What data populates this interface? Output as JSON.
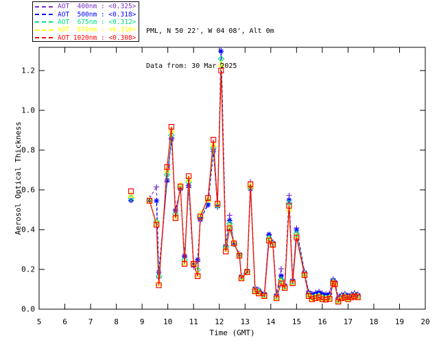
{
  "header": {
    "location": "PML, N 50 22', W 04 08', Alt 0m",
    "data_from": "Data from: 30 Mar 2025"
  },
  "legend": {
    "items": [
      {
        "id": "aot-400nm",
        "label": "AOT  400nm : <0.325>",
        "color": "#7A2FC5"
      },
      {
        "id": "aot-500nm",
        "label": "AOT  500nm : <0.318>",
        "color": "#0000FF"
      },
      {
        "id": "aot-675nm",
        "label": "AOT  675nm : <0.312>",
        "color": "#00E07D"
      },
      {
        "id": "aot-870nm",
        "label": "AOT  870nm : <0.310>",
        "color": "#FFFF00"
      },
      {
        "id": "aot-1020nm",
        "label": "AOT 1020nm : <0.308>",
        "color": "#FF0000"
      }
    ]
  },
  "chart_data": {
    "type": "line",
    "title": "",
    "xlabel": "Time (GMT)",
    "ylabel": "Aerosol Optical Thickness",
    "xlim": [
      5,
      20
    ],
    "ylim": [
      0,
      1.317
    ],
    "grid": false,
    "legend_position": "top-left",
    "x_ticks": [
      "5",
      "6",
      "7",
      "8",
      "9",
      "10",
      "11",
      "12",
      "13",
      "14",
      "15",
      "16",
      "17",
      "18",
      "19",
      "20"
    ],
    "y_ticks": [
      "0.0",
      "0.2",
      "0.4",
      "0.6",
      "0.8",
      "1.0",
      "1.2"
    ],
    "x": [
      8.57,
      9.29,
      9.56,
      9.65,
      9.97,
      10.14,
      10.3,
      10.49,
      10.65,
      10.81,
      11.0,
      11.16,
      11.26,
      11.56,
      11.77,
      11.93,
      12.07,
      12.25,
      12.4,
      12.57,
      12.78,
      12.86,
      13.08,
      13.21,
      13.39,
      13.53,
      13.75,
      13.93,
      14.08,
      14.22,
      14.4,
      14.54,
      14.71,
      14.85,
      15.0,
      15.31,
      15.47,
      15.6,
      15.74,
      15.87,
      16.0,
      16.14,
      16.28,
      16.42,
      16.49,
      16.62,
      16.75,
      16.88,
      17.0,
      17.13,
      17.25,
      17.38
    ],
    "gap_before_indices": [
      1
    ],
    "series": [
      {
        "name": "AOT 400nm",
        "wavelength": "400nm",
        "mean": "<0.325>",
        "color": "#7A2FC5",
        "marker": "plus",
        "line": "dashed",
        "values": [
          0.546,
          0.558,
          0.615,
          0.158,
          0.64,
          0.862,
          0.503,
          0.601,
          0.262,
          0.612,
          0.212,
          0.24,
          0.444,
          0.532,
          0.803,
          0.512,
          1.318,
          0.322,
          0.472,
          0.33,
          0.279,
          0.169,
          0.196,
          0.64,
          0.109,
          0.099,
          0.081,
          0.372,
          0.338,
          0.074,
          0.203,
          0.125,
          0.572,
          0.149,
          0.408,
          0.189,
          0.089,
          0.079,
          0.084,
          0.089,
          0.081,
          0.077,
          0.08,
          0.151,
          0.14,
          0.059,
          0.074,
          0.079,
          0.069,
          0.076,
          0.082,
          0.076
        ]
      },
      {
        "name": "AOT 500nm",
        "wavelength": "500nm",
        "mean": "<0.318>",
        "color": "#0000FF",
        "marker": "asterisk",
        "line": "dashed",
        "values": [
          0.548,
          0.545,
          0.545,
          0.186,
          0.648,
          0.855,
          0.494,
          0.605,
          0.268,
          0.621,
          0.226,
          0.249,
          0.452,
          0.524,
          0.794,
          0.518,
          1.297,
          0.316,
          0.446,
          0.327,
          0.275,
          0.164,
          0.193,
          0.605,
          0.103,
          0.094,
          0.076,
          0.376,
          0.333,
          0.068,
          0.168,
          0.118,
          0.549,
          0.143,
          0.398,
          0.184,
          0.083,
          0.073,
          0.078,
          0.084,
          0.076,
          0.072,
          0.075,
          0.146,
          0.135,
          0.053,
          0.069,
          0.074,
          0.064,
          0.071,
          0.077,
          0.071
        ]
      },
      {
        "name": "AOT 675nm",
        "wavelength": "675nm",
        "mean": "<0.312>",
        "color": "#00E07D",
        "marker": "diamond",
        "line": "dashed",
        "values": [
          0.559,
          0.548,
          0.44,
          0.165,
          0.676,
          0.875,
          0.478,
          0.61,
          0.249,
          0.64,
          0.23,
          0.198,
          0.46,
          0.548,
          0.812,
          0.522,
          1.259,
          0.31,
          0.43,
          0.328,
          0.273,
          0.16,
          0.19,
          0.612,
          0.097,
          0.088,
          0.071,
          0.358,
          0.327,
          0.061,
          0.149,
          0.112,
          0.534,
          0.137,
          0.38,
          0.178,
          0.074,
          0.059,
          0.064,
          0.069,
          0.06,
          0.057,
          0.06,
          0.137,
          0.131,
          0.045,
          0.061,
          0.066,
          0.056,
          0.064,
          0.07,
          0.064
        ]
      },
      {
        "name": "AOT 870nm",
        "wavelength": "870nm",
        "mean": "<0.310>",
        "color": "#FFFF00",
        "marker": "triangle",
        "line": "dashed",
        "values": [
          0.573,
          0.547,
          0.432,
          0.13,
          0.7,
          0.9,
          0.465,
          0.624,
          0.235,
          0.655,
          0.232,
          0.175,
          0.478,
          0.552,
          0.83,
          0.528,
          1.232,
          0.303,
          0.416,
          0.333,
          0.271,
          0.158,
          0.188,
          0.62,
          0.093,
          0.082,
          0.068,
          0.35,
          0.323,
          0.058,
          0.138,
          0.109,
          0.505,
          0.134,
          0.368,
          0.175,
          0.069,
          0.054,
          0.059,
          0.064,
          0.054,
          0.052,
          0.056,
          0.133,
          0.128,
          0.041,
          0.058,
          0.063,
          0.053,
          0.062,
          0.067,
          0.062
        ]
      },
      {
        "name": "AOT 1020nm",
        "wavelength": "1020nm",
        "mean": "<0.308>",
        "color": "#FF0000",
        "marker": "square",
        "line": "solid",
        "values": [
          0.593,
          0.545,
          0.425,
          0.12,
          0.715,
          0.917,
          0.458,
          0.617,
          0.228,
          0.669,
          0.228,
          0.166,
          0.466,
          0.559,
          0.852,
          0.531,
          1.2,
          0.29,
          0.407,
          0.331,
          0.269,
          0.155,
          0.186,
          0.628,
          0.09,
          0.079,
          0.066,
          0.345,
          0.324,
          0.055,
          0.13,
          0.107,
          0.52,
          0.131,
          0.36,
          0.172,
          0.066,
          0.05,
          0.055,
          0.06,
          0.05,
          0.048,
          0.052,
          0.13,
          0.125,
          0.038,
          0.055,
          0.06,
          0.05,
          0.06,
          0.065,
          0.06
        ]
      }
    ]
  }
}
